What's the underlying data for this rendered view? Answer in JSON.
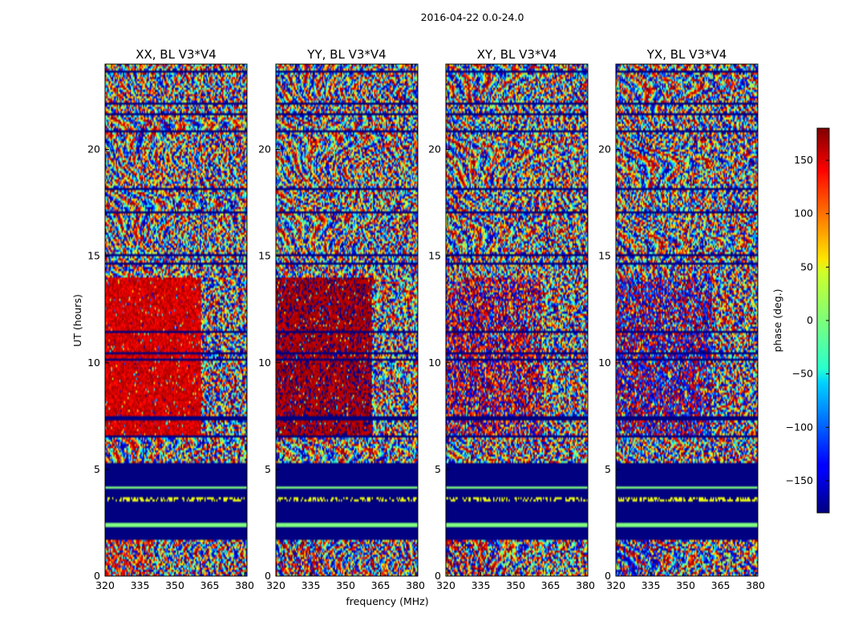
{
  "figure": {
    "suptitle": "2016-04-22 0.0-24.0",
    "ylabel": "UT (hours)",
    "xlabel": "frequency (MHz)"
  },
  "chart_data": {
    "type": "heatmap",
    "xlim": [
      320,
      381
    ],
    "ylim": [
      0,
      24
    ],
    "xticks": [
      "320",
      "335",
      "350",
      "365",
      "380"
    ],
    "yticks": [
      "0",
      "5",
      "10",
      "15",
      "20"
    ],
    "panels": [
      {
        "title": "XX, BL V3*V4",
        "pol": "XX",
        "coherent_phase": 150,
        "coherent_below_MHz": 361,
        "coherent_hours": [
          6.6,
          14.0
        ],
        "low_hours_phase": 140
      },
      {
        "title": "YY, BL V3*V4",
        "pol": "YY",
        "coherent_phase": 168,
        "coherent_below_MHz": 361,
        "coherent_hours": [
          6.6,
          14.0
        ],
        "low_hours_phase": 165
      },
      {
        "title": "XY, BL V3*V4",
        "pol": "XY",
        "coherent_phase": 165,
        "coherent_below_MHz": 361,
        "coherent_hours": [
          6.6,
          14.0
        ],
        "low_hours_phase": 165,
        "noisy": true
      },
      {
        "title": "YX, BL V3*V4",
        "pol": "YX",
        "coherent_phase": -165,
        "coherent_below_MHz": 361,
        "coherent_hours": [
          6.6,
          14.0
        ],
        "low_hours_phase": -150,
        "noisy": true
      }
    ],
    "flagged_hours": [
      5.3,
      1.7
    ],
    "flag_value": -180,
    "colorbar": {
      "label": "phase (deg.)",
      "range": [
        -180,
        180
      ],
      "ticks": [
        "150",
        "100",
        "50",
        "0",
        "−50",
        "−100",
        "−150"
      ],
      "tick_values": [
        150,
        100,
        50,
        0,
        -50,
        -100,
        -150
      ],
      "colormap": "jet"
    }
  }
}
